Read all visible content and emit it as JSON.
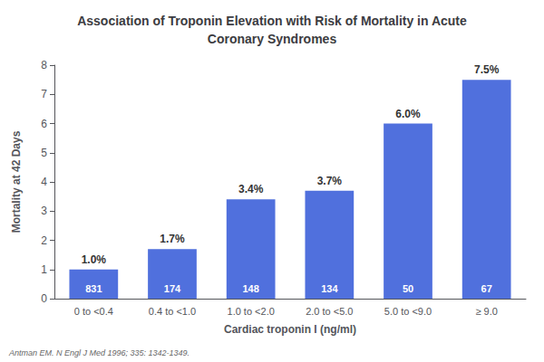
{
  "chart_data": {
    "type": "bar",
    "title": "Association of Troponin Elevation with Risk of Mortality in Acute\nCoronary Syndromes",
    "xlabel": "Cardiac troponin I (ng/ml)",
    "ylabel": "Mortality at 42 Days",
    "categories": [
      "0 to <0.4",
      "0.4 to <1.0",
      "1.0 to <2.0",
      "2.0 to <5.0",
      "5.0 to <9.0",
      "≥ 9.0"
    ],
    "values": [
      1.0,
      1.7,
      3.4,
      3.7,
      6.0,
      7.5
    ],
    "value_labels": [
      "1.0%",
      "1.7%",
      "3.4%",
      "3.7%",
      "6.0%",
      "7.5%"
    ],
    "data_labels": true,
    "counts": [
      831,
      174,
      148,
      134,
      50,
      67
    ],
    "annotations": [
      "Antman EM. N Engl J Med 1996; 335: 1342-1349."
    ],
    "ylim": [
      0,
      8
    ],
    "yticks": [
      0,
      1,
      2,
      3,
      4,
      5,
      6,
      7,
      8
    ],
    "grid": false
  }
}
